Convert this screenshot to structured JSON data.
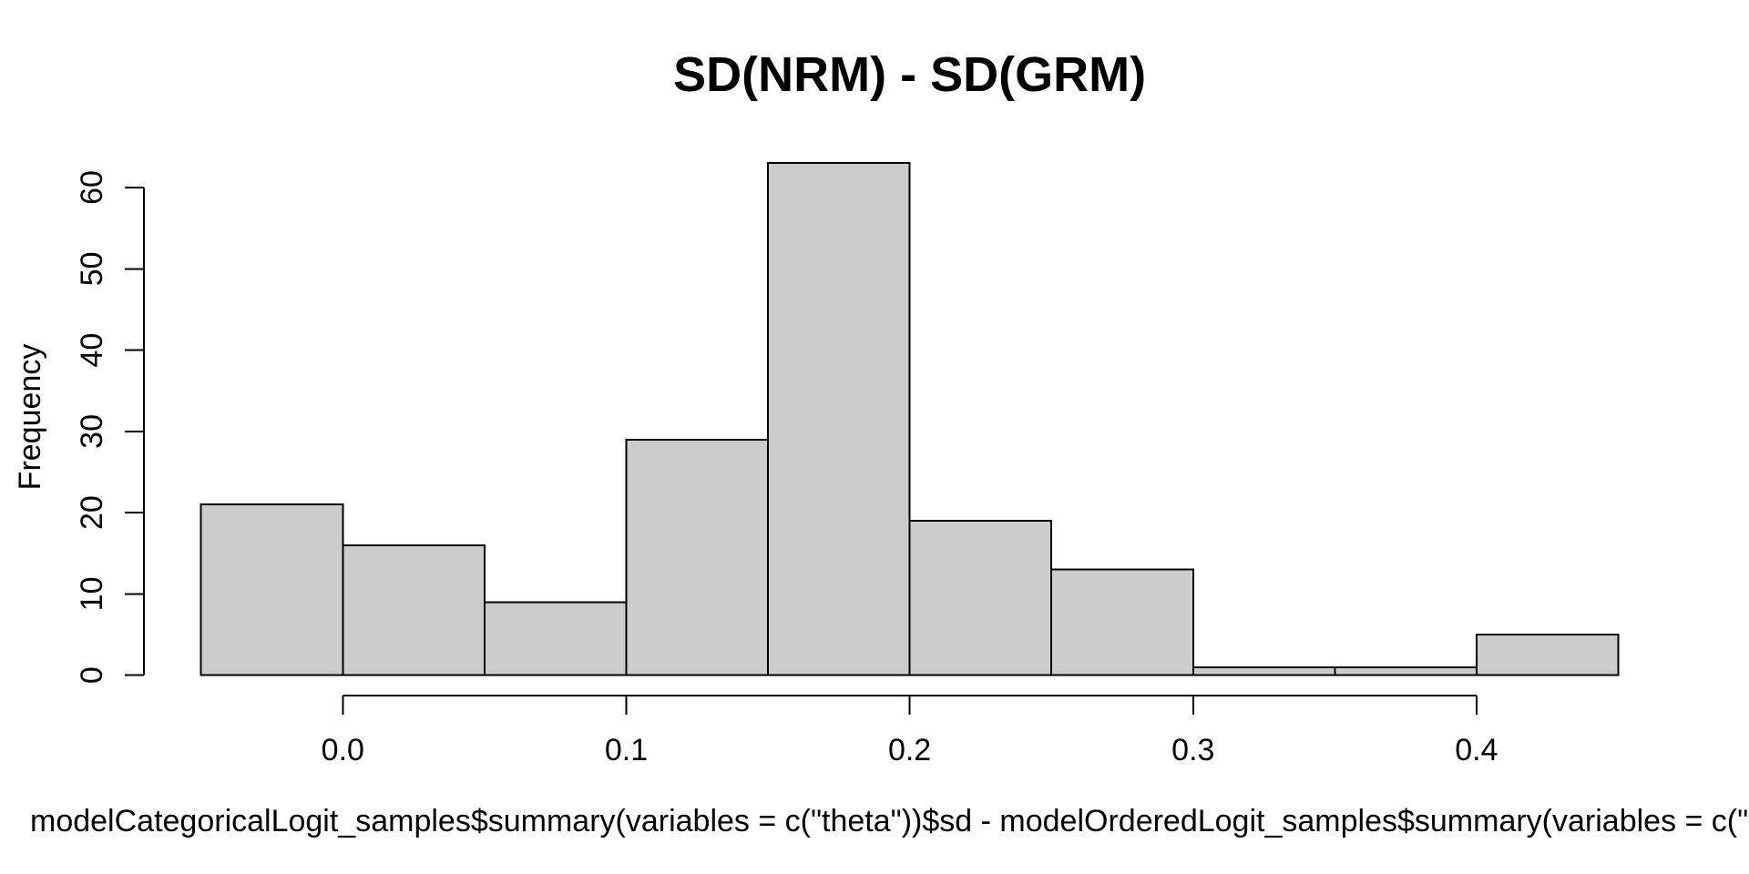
{
  "figure": {
    "background": "#FFFFFF"
  },
  "chart_data": {
    "type": "bar",
    "subtype": "histogram",
    "title": "SD(NRM) - SD(GRM)",
    "ylabel": "Frequency",
    "xlabel": "modelCategoricalLogit_samples$summary(variables = c(\"theta\"))$sd - modelOrderedLogit_samples$summary(variables = c(\"theta\"))$sd",
    "bin_breaks": [
      -0.05,
      0.0,
      0.05,
      0.1,
      0.15,
      0.2,
      0.25,
      0.3,
      0.35,
      0.4,
      0.45
    ],
    "counts": [
      21,
      16,
      9,
      29,
      63,
      19,
      13,
      1,
      1,
      5
    ],
    "x_ticks": [
      0.0,
      0.1,
      0.2,
      0.3,
      0.4
    ],
    "x_tick_labels": [
      "0.0",
      "0.1",
      "0.2",
      "0.3",
      "0.4"
    ],
    "y_ticks": [
      0,
      10,
      20,
      30,
      40,
      50,
      60
    ],
    "y_tick_labels": [
      "0",
      "10",
      "20",
      "30",
      "40",
      "50",
      "60"
    ],
    "xlim": [
      -0.05,
      0.45
    ],
    "ylim": [
      0,
      63
    ],
    "grid": false,
    "legend": null,
    "bar_fill": "#CCCCCC",
    "bar_stroke": "#000000",
    "axis_color": "#000000",
    "text_color": "#000000"
  }
}
